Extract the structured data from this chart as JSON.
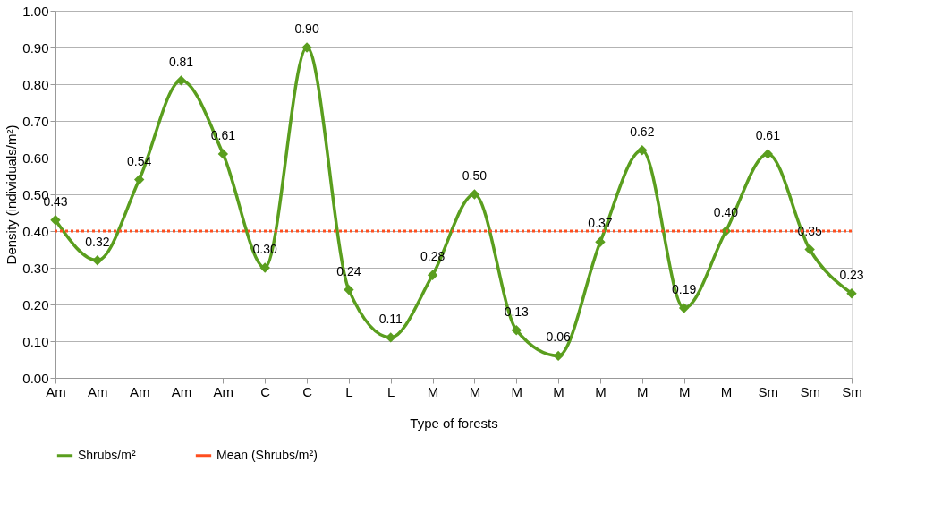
{
  "chart_data": {
    "type": "line",
    "xlabel": "Type of forests",
    "ylabel": "Density (individuals/m²)",
    "categories": [
      "Am",
      "Am",
      "Am",
      "Am",
      "Am",
      "C",
      "C",
      "L",
      "L",
      "M",
      "M",
      "M",
      "M",
      "M",
      "M",
      "M",
      "M",
      "Sm",
      "Sm",
      "Sm"
    ],
    "series": [
      {
        "name": "Shrubs/m²",
        "color": "#5a9e1e",
        "values": [
          0.43,
          0.32,
          0.54,
          0.81,
          0.61,
          0.3,
          0.9,
          0.24,
          0.11,
          0.28,
          0.5,
          0.13,
          0.06,
          0.37,
          0.62,
          0.19,
          0.4,
          0.61,
          0.35,
          0.23
        ],
        "value_labels": [
          "0.43",
          "0.32",
          "0.54",
          "0.81",
          "0.61",
          "0.30",
          "0.90",
          "0.24",
          "0.11",
          "0.28",
          "0.50",
          "0.13",
          "0.06",
          "0.37",
          "0.62",
          "0.19",
          "0.40",
          "0.61",
          "0.35",
          "0.23"
        ]
      }
    ],
    "ref_lines": [
      {
        "axis": "y",
        "value": 0.4,
        "label": "Mean (Shrubs/m²)",
        "color": "#ff4e1f",
        "line_style": "dotted"
      }
    ],
    "ylim": [
      0,
      1
    ],
    "yticks": [
      {
        "value": 0,
        "label": "0.00"
      },
      {
        "value": 0.1,
        "label": "0.10"
      },
      {
        "value": 0.2,
        "label": "0.20"
      },
      {
        "value": 0.3,
        "label": "0.30"
      },
      {
        "value": 0.4,
        "label": "0.40"
      },
      {
        "value": 0.5,
        "label": "0.50"
      },
      {
        "value": 0.6,
        "label": "0.60"
      },
      {
        "value": 0.7,
        "label": "0.70"
      },
      {
        "value": 0.8,
        "label": "0.80"
      },
      {
        "value": 0.9,
        "label": "0.90"
      },
      {
        "value": 1,
        "label": "1.00"
      }
    ],
    "grid": "y",
    "legend": "bottom",
    "marker": "diamond",
    "line_style": "solid"
  }
}
